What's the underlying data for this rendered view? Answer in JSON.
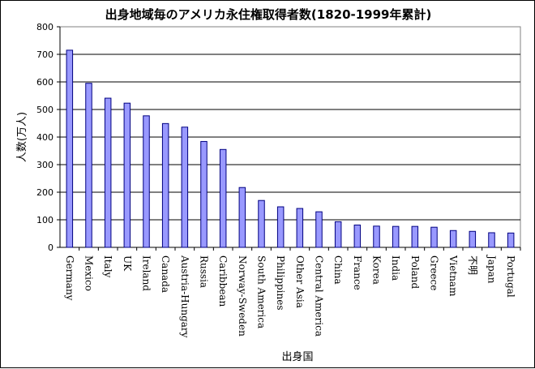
{
  "chart_data": {
    "type": "bar",
    "title": "出身地域毎のアメリカ永住権取得者数(1820-1999年累計)",
    "xlabel": "出身国",
    "ylabel": "人数(万人)",
    "ylim": [
      0,
      800
    ],
    "yticks": [
      0,
      100,
      200,
      300,
      400,
      500,
      600,
      700,
      800
    ],
    "grid": true,
    "categories": [
      "Germany",
      "Mexico",
      "Italy",
      "UK",
      "Ireland",
      "Canada",
      "Austria-Hungary",
      "Russia",
      "Caribbean",
      "Norway-Sweden",
      "South America",
      "Philippines",
      "Other Asia",
      "Central America",
      "China",
      "France",
      "Korea",
      "India",
      "Poland",
      "Greece",
      "Vietnam",
      "不明",
      "Japan",
      "Portugal"
    ],
    "values": [
      715,
      595,
      541,
      523,
      477,
      449,
      436,
      384,
      355,
      217,
      170,
      147,
      141,
      129,
      93,
      81,
      77,
      76,
      76,
      73,
      61,
      58,
      53,
      52
    ],
    "colors": {
      "bar_fill": "#9999ff",
      "bar_stroke": "#000080",
      "grid": "#000000",
      "axis": "#808080"
    }
  }
}
